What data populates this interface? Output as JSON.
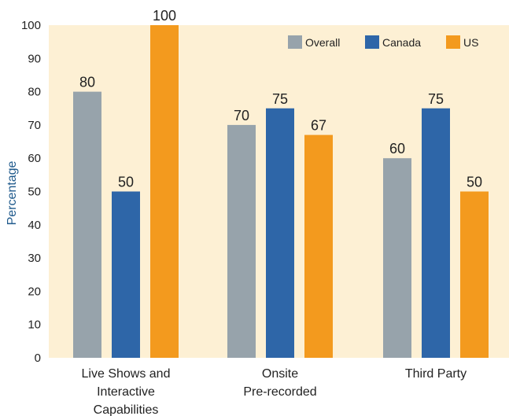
{
  "chart_data": {
    "type": "bar",
    "title": "",
    "xlabel": "",
    "ylabel": "Percentage",
    "ylim": [
      0,
      100
    ],
    "yticks": [
      0,
      10,
      20,
      30,
      40,
      50,
      60,
      70,
      80,
      90,
      100
    ],
    "grid": false,
    "legend_position": "top-right",
    "categories": [
      [
        "Live Shows and",
        "Interactive",
        "Capabilities"
      ],
      [
        "Onsite",
        "Pre-recorded"
      ],
      [
        "Third Party"
      ]
    ],
    "series": [
      {
        "name": "Overall",
        "color": "#97a3ab",
        "values": [
          80,
          70,
          60
        ]
      },
      {
        "name": "Canada",
        "color": "#2e66a8",
        "values": [
          50,
          75,
          75
        ]
      },
      {
        "name": "US",
        "color": "#f39a1e",
        "values": [
          100,
          67,
          50
        ]
      }
    ],
    "plot_background": "#fdf0d4"
  }
}
